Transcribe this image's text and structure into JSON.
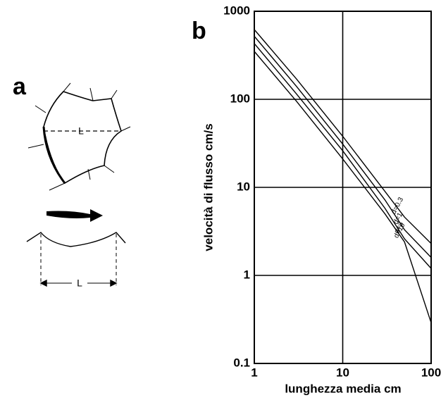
{
  "panel_a": {
    "label": "a",
    "plan_length_label": "L",
    "section_length_label": "L"
  },
  "chart_data": {
    "type": "line",
    "panel_label": "b",
    "x_label": "lunghezza media cm",
    "y_label": "velocità di flusso cm/s",
    "log_x": true,
    "log_y": true,
    "grid": true,
    "x": [
      1,
      3,
      10,
      30,
      50,
      100
    ],
    "series": [
      {
        "name": "d=0.3",
        "color": "#000000",
        "values": [
          620,
          170,
          38,
          9,
          4.6,
          2.3
        ]
      },
      {
        "name": "d=1",
        "color": "#000000",
        "values": [
          520,
          140,
          31,
          7.2,
          3.3,
          1.6
        ]
      },
      {
        "name": "d=3",
        "color": "#000000",
        "values": [
          430,
          115,
          26,
          5.8,
          2.6,
          1.2
        ]
      },
      {
        "name": "d=10",
        "color": "#000000",
        "values": [
          350,
          95,
          21,
          5.0,
          2.4,
          0.29
        ]
      }
    ],
    "xlim": [
      1,
      100
    ],
    "xticks": [
      1,
      10,
      100
    ],
    "ylim": [
      0.1,
      1000
    ],
    "yticks": [
      0.1,
      1,
      10,
      100,
      1000
    ]
  }
}
